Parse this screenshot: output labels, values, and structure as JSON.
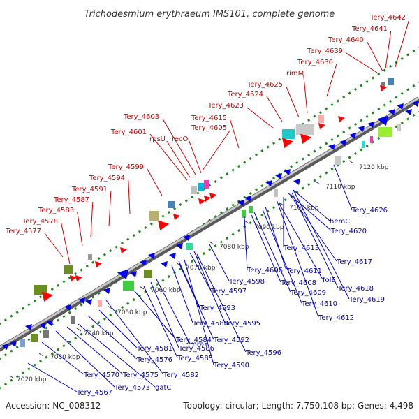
{
  "title": "Trichodesmium erythraeum IMS101, complete genome",
  "footer": {
    "accession": "Accession: NC_008312",
    "summary": "Topology: circular; Length: 7,750,108 bp; Genes: 4,498"
  },
  "colors": {
    "top_label": "#cc0000",
    "bottom_label": "#0000cc",
    "backbone": "#888888",
    "dotted_ring": "#1b8a1b"
  },
  "kbp_labels": [
    "7020 kbp",
    "7030 kbp",
    "7040 kbp",
    "7050 kbp",
    "7060 kbp",
    "7070 kbp",
    "7080 kbp",
    "7090 kbp",
    "7100 kbp",
    "7110 kbp",
    "7120 kbp"
  ],
  "top_labels": [
    "Tery_4577",
    "Tery_4578",
    "Tery_4583",
    "Tery_4587",
    "Tery_4591",
    "Tery_4594",
    "Tery_4599",
    "Tery_4601",
    "rpsU",
    "Tery_4603",
    "recO",
    "Tery_4605",
    "Tery_4615",
    "Tery_4623",
    "Tery_4624",
    "Tery_4625",
    "rimM",
    "Tery_4630",
    "Tery_4639",
    "Tery_4640",
    "Tery_4641",
    "Tery_4642"
  ],
  "bottom_labels": [
    "Tery_4567",
    "Tery_4570",
    "Tery_4573",
    "Tery_4575",
    "gatC",
    "Tery_4576",
    "Tery_4581",
    "Tery_4582",
    "Tery_4584",
    "Tery_4585",
    "mraY",
    "Tery_4586",
    "Tery_4588",
    "Tery_4590",
    "Tery_4592",
    "Tery_4593",
    "Tery_4595",
    "Tery_4596",
    "Tery_4597",
    "Tery_4598",
    "Tery_4606",
    "Tery_4608",
    "Tery_4609",
    "Tery_4610",
    "Tery_4611",
    "folE",
    "Tery_4612",
    "Tery_4613",
    "Tery_4617",
    "Tery_4618",
    "Tery_4619",
    "hemC",
    "Tery_4620",
    "Tery_4626"
  ]
}
